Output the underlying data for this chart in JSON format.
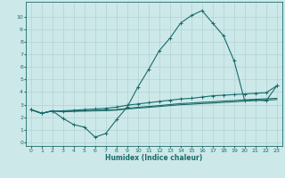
{
  "xlabel": "Humidex (Indice chaleur)",
  "bg_color": "#cce8e8",
  "grid_color": "#aacece",
  "line_color": "#1a6b6b",
  "xlim": [
    -0.5,
    23.5
  ],
  "ylim": [
    -0.3,
    11.2
  ],
  "xticks": [
    0,
    1,
    2,
    3,
    4,
    5,
    6,
    7,
    8,
    9,
    10,
    11,
    12,
    13,
    14,
    15,
    16,
    17,
    18,
    19,
    20,
    21,
    22,
    23
  ],
  "yticks": [
    0,
    1,
    2,
    3,
    4,
    5,
    6,
    7,
    8,
    9,
    10
  ],
  "line1_x": [
    0,
    1,
    2,
    3,
    4,
    5,
    6,
    7,
    8,
    9,
    10,
    11,
    12,
    13,
    14,
    15,
    16,
    17,
    18,
    19,
    20,
    21,
    22,
    23
  ],
  "line1_y": [
    2.6,
    2.3,
    2.5,
    1.9,
    1.4,
    1.2,
    0.4,
    0.7,
    1.8,
    2.8,
    4.4,
    5.8,
    7.3,
    8.3,
    9.5,
    10.1,
    10.5,
    9.5,
    8.5,
    6.5,
    3.3,
    3.4,
    3.3,
    4.5
  ],
  "line2_x": [
    0,
    1,
    2,
    3,
    4,
    5,
    6,
    7,
    8,
    9,
    10,
    11,
    12,
    13,
    14,
    15,
    16,
    17,
    18,
    19,
    20,
    21,
    22,
    23
  ],
  "line2_y": [
    2.6,
    2.3,
    2.5,
    2.5,
    2.55,
    2.6,
    2.65,
    2.7,
    2.8,
    2.95,
    3.05,
    3.15,
    3.25,
    3.35,
    3.45,
    3.5,
    3.6,
    3.7,
    3.75,
    3.8,
    3.85,
    3.9,
    3.95,
    4.5
  ],
  "line3_x": [
    0,
    1,
    2,
    3,
    4,
    5,
    6,
    7,
    8,
    9,
    10,
    11,
    12,
    13,
    14,
    15,
    16,
    17,
    18,
    19,
    20,
    21,
    22,
    23
  ],
  "line3_y": [
    2.6,
    2.3,
    2.5,
    2.45,
    2.5,
    2.52,
    2.54,
    2.56,
    2.6,
    2.7,
    2.78,
    2.85,
    2.92,
    3.0,
    3.08,
    3.12,
    3.18,
    3.22,
    3.28,
    3.32,
    3.38,
    3.42,
    3.46,
    3.5
  ],
  "line4_x": [
    0,
    1,
    2,
    3,
    4,
    5,
    6,
    7,
    8,
    9,
    10,
    11,
    12,
    13,
    14,
    15,
    16,
    17,
    18,
    19,
    20,
    21,
    22,
    23
  ],
  "line4_y": [
    2.6,
    2.3,
    2.5,
    2.42,
    2.46,
    2.48,
    2.5,
    2.52,
    2.56,
    2.65,
    2.72,
    2.78,
    2.85,
    2.92,
    2.99,
    3.03,
    3.08,
    3.12,
    3.18,
    3.22,
    3.28,
    3.32,
    3.36,
    3.4
  ]
}
